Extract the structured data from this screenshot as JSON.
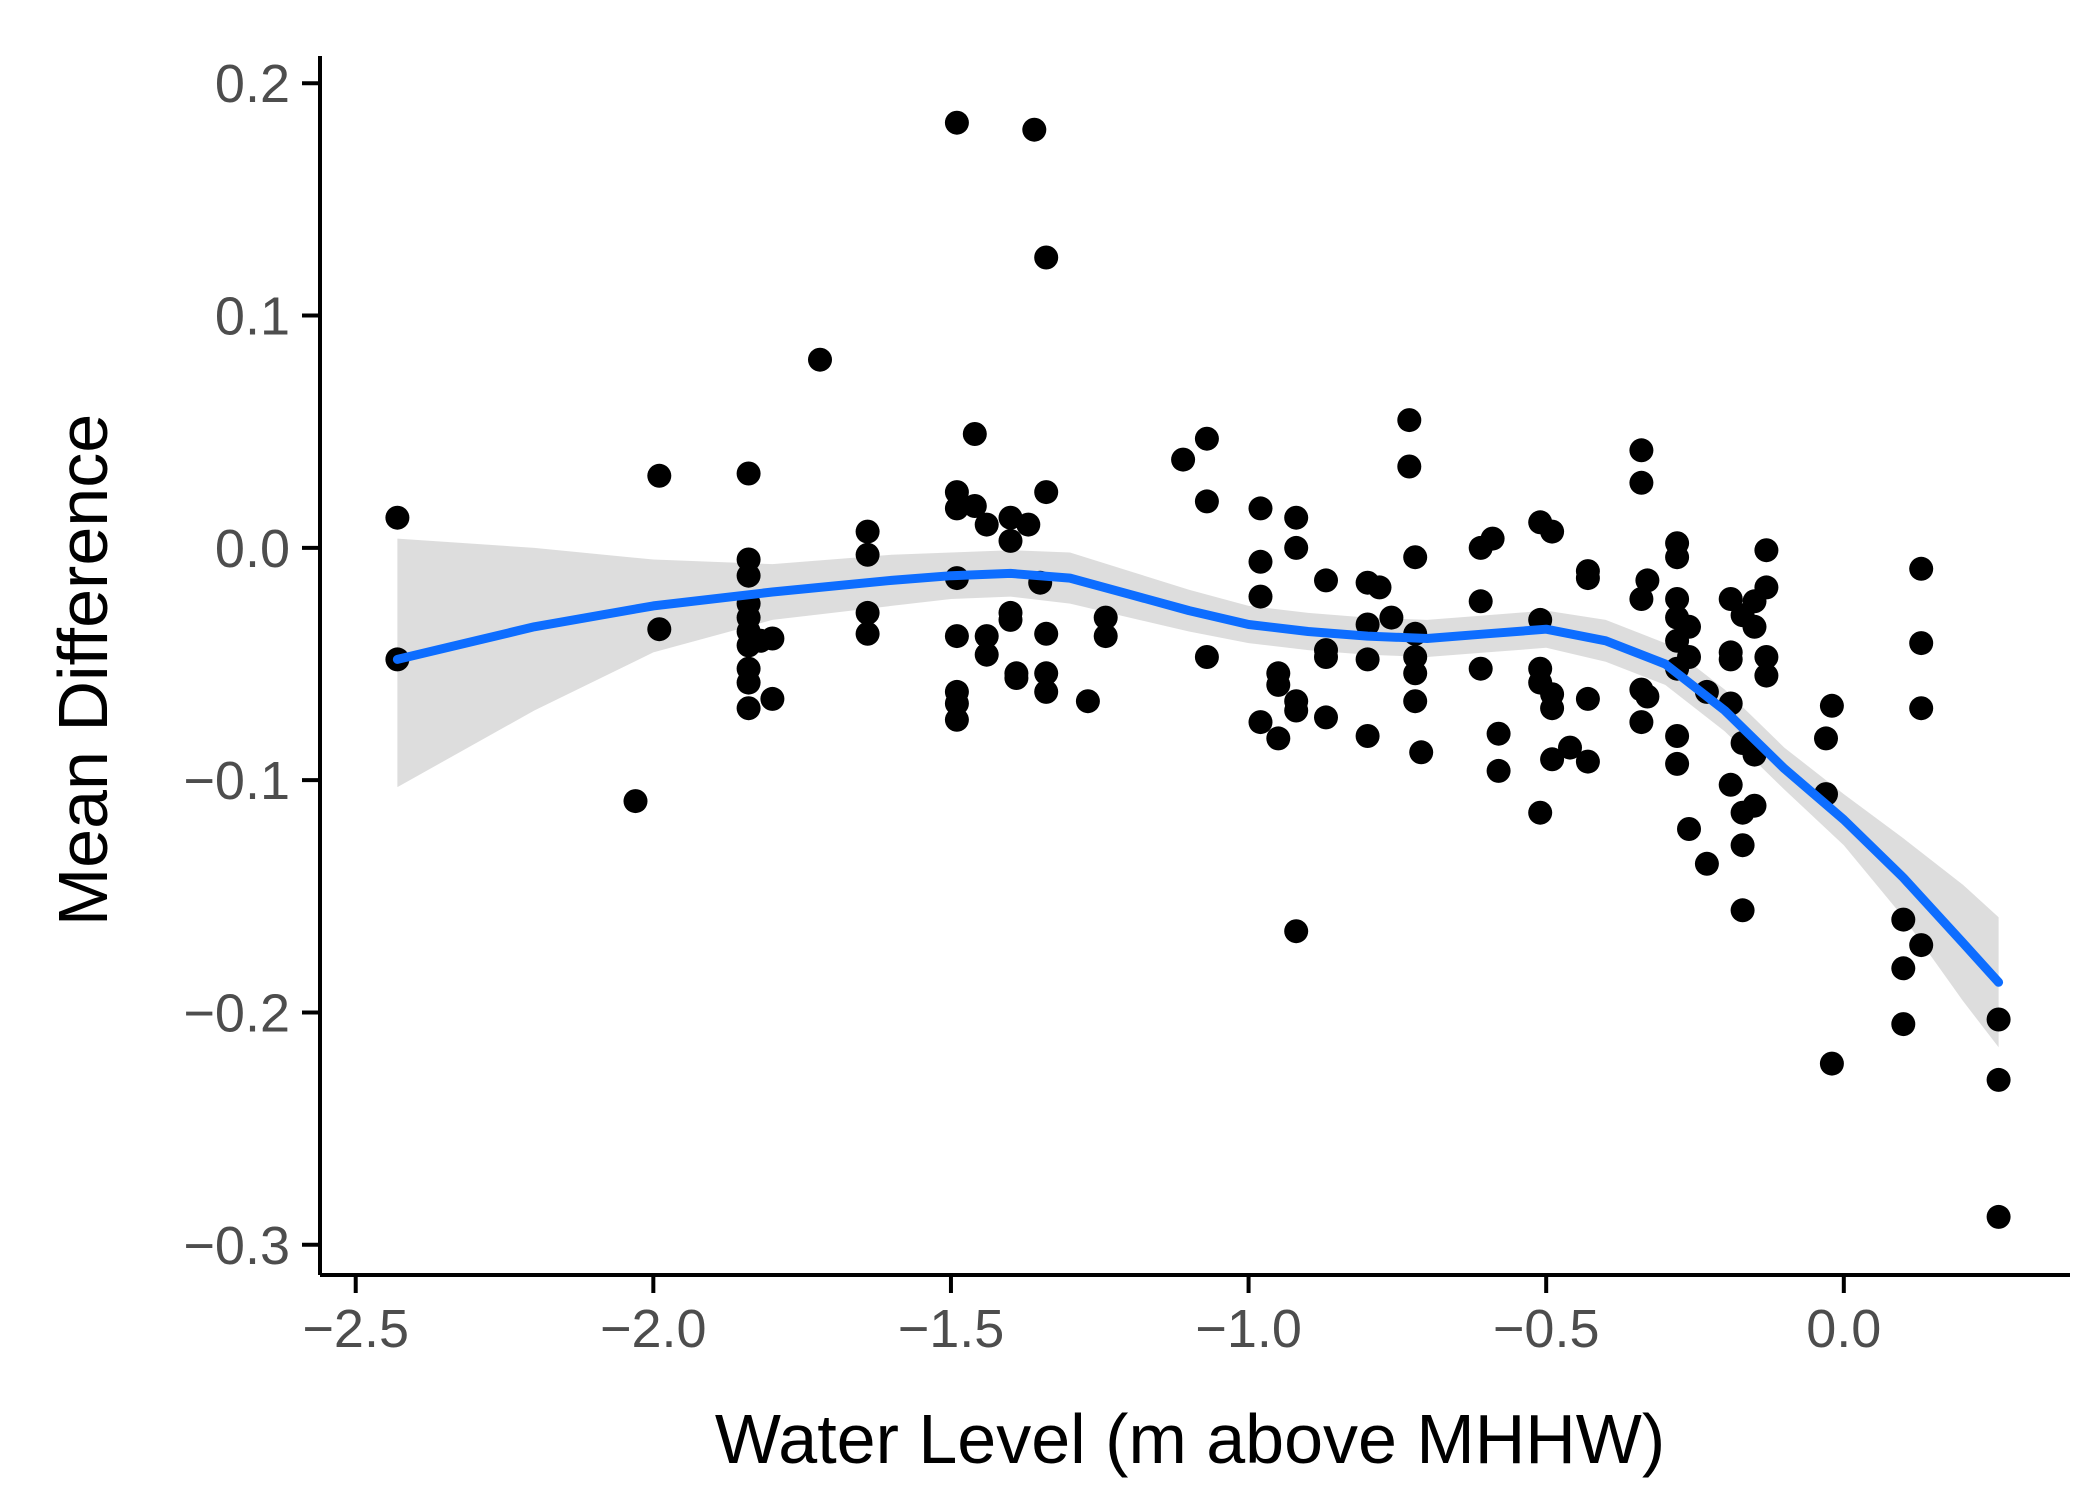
{
  "chart_data": {
    "type": "scatter",
    "title": "",
    "xlabel": "Water Level (m above MHHW)",
    "ylabel": "Mean Difference",
    "xlim": [
      -2.56,
      0.38
    ],
    "ylim": [
      -0.313,
      0.21
    ],
    "x_ticks": [
      -2.5,
      -2.0,
      -1.5,
      -1.0,
      -0.5,
      0.0
    ],
    "x_tick_labels": [
      "−2.5",
      "−2.0",
      "−1.5",
      "−1.0",
      "−0.5",
      "0.0"
    ],
    "y_ticks": [
      -0.3,
      -0.2,
      -0.1,
      0.0,
      0.1,
      0.2
    ],
    "y_tick_labels": [
      "−0.3",
      "−0.2",
      "−0.1",
      "0.0",
      "0.1",
      "0.2"
    ],
    "grid": false,
    "legend": "none",
    "colors": {
      "points": "#000000",
      "smooth_line": "#0d6dff",
      "confidence_band": "#d9d9d9",
      "axis": "#000000",
      "tick_label": "#4d4d4d"
    },
    "series": [
      {
        "name": "observations",
        "points": [
          [
            -2.43,
            0.013
          ],
          [
            -2.43,
            -0.048
          ],
          [
            -2.03,
            -0.109
          ],
          [
            -1.99,
            0.031
          ],
          [
            -1.99,
            -0.035
          ],
          [
            -1.84,
            0.032
          ],
          [
            -1.84,
            -0.005
          ],
          [
            -1.84,
            -0.012
          ],
          [
            -1.84,
            -0.024
          ],
          [
            -1.84,
            -0.03
          ],
          [
            -1.84,
            -0.036
          ],
          [
            -1.84,
            -0.042
          ],
          [
            -1.84,
            -0.052
          ],
          [
            -1.84,
            -0.058
          ],
          [
            -1.84,
            -0.069
          ],
          [
            -1.82,
            -0.04
          ],
          [
            -1.8,
            -0.039
          ],
          [
            -1.8,
            -0.065
          ],
          [
            -1.72,
            0.081
          ],
          [
            -1.64,
            0.007
          ],
          [
            -1.64,
            -0.003
          ],
          [
            -1.64,
            -0.028
          ],
          [
            -1.64,
            -0.037
          ],
          [
            -1.49,
            0.183
          ],
          [
            -1.49,
            0.024
          ],
          [
            -1.49,
            0.017
          ],
          [
            -1.49,
            -0.013
          ],
          [
            -1.49,
            -0.038
          ],
          [
            -1.49,
            -0.062
          ],
          [
            -1.49,
            -0.067
          ],
          [
            -1.49,
            -0.074
          ],
          [
            -1.46,
            0.049
          ],
          [
            -1.46,
            0.018
          ],
          [
            -1.44,
            0.01
          ],
          [
            -1.44,
            -0.038
          ],
          [
            -1.44,
            -0.046
          ],
          [
            -1.4,
            0.013
          ],
          [
            -1.4,
            0.003
          ],
          [
            -1.4,
            -0.028
          ],
          [
            -1.4,
            -0.031
          ],
          [
            -1.39,
            -0.054
          ],
          [
            -1.39,
            -0.056
          ],
          [
            -1.37,
            0.01
          ],
          [
            -1.36,
            0.18
          ],
          [
            -1.35,
            -0.015
          ],
          [
            -1.34,
            0.125
          ],
          [
            -1.34,
            0.024
          ],
          [
            -1.34,
            -0.037
          ],
          [
            -1.34,
            -0.054
          ],
          [
            -1.34,
            -0.062
          ],
          [
            -1.27,
            -0.066
          ],
          [
            -1.24,
            -0.03
          ],
          [
            -1.24,
            -0.038
          ],
          [
            -1.11,
            0.038
          ],
          [
            -1.07,
            0.047
          ],
          [
            -1.07,
            0.02
          ],
          [
            -1.07,
            -0.047
          ],
          [
            -0.98,
            0.017
          ],
          [
            -0.98,
            -0.006
          ],
          [
            -0.98,
            -0.021
          ],
          [
            -0.98,
            -0.075
          ],
          [
            -0.95,
            -0.054
          ],
          [
            -0.95,
            -0.059
          ],
          [
            -0.95,
            -0.082
          ],
          [
            -0.92,
            0.013
          ],
          [
            -0.92,
            0.0
          ],
          [
            -0.92,
            -0.066
          ],
          [
            -0.92,
            -0.07
          ],
          [
            -0.92,
            -0.165
          ],
          [
            -0.87,
            -0.014
          ],
          [
            -0.87,
            -0.044
          ],
          [
            -0.87,
            -0.047
          ],
          [
            -0.87,
            -0.073
          ],
          [
            -0.8,
            -0.015
          ],
          [
            -0.8,
            -0.033
          ],
          [
            -0.8,
            -0.048
          ],
          [
            -0.8,
            -0.081
          ],
          [
            -0.78,
            -0.017
          ],
          [
            -0.76,
            -0.03
          ],
          [
            -0.73,
            0.055
          ],
          [
            -0.73,
            0.035
          ],
          [
            -0.72,
            -0.004
          ],
          [
            -0.72,
            -0.037
          ],
          [
            -0.72,
            -0.047
          ],
          [
            -0.72,
            -0.054
          ],
          [
            -0.72,
            -0.066
          ],
          [
            -0.71,
            -0.088
          ],
          [
            -0.61,
            -0.0
          ],
          [
            -0.61,
            -0.023
          ],
          [
            -0.61,
            -0.052
          ],
          [
            -0.59,
            0.004
          ],
          [
            -0.58,
            -0.08
          ],
          [
            -0.58,
            -0.096
          ],
          [
            -0.51,
            0.011
          ],
          [
            -0.51,
            -0.031
          ],
          [
            -0.51,
            -0.052
          ],
          [
            -0.51,
            -0.058
          ],
          [
            -0.51,
            -0.114
          ],
          [
            -0.49,
            0.007
          ],
          [
            -0.49,
            -0.063
          ],
          [
            -0.49,
            -0.069
          ],
          [
            -0.49,
            -0.091
          ],
          [
            -0.46,
            -0.086
          ],
          [
            -0.43,
            -0.01
          ],
          [
            -0.43,
            -0.013
          ],
          [
            -0.43,
            -0.065
          ],
          [
            -0.43,
            -0.092
          ],
          [
            -0.34,
            0.042
          ],
          [
            -0.34,
            0.028
          ],
          [
            -0.34,
            -0.022
          ],
          [
            -0.34,
            -0.061
          ],
          [
            -0.34,
            -0.075
          ],
          [
            -0.33,
            -0.014
          ],
          [
            -0.33,
            -0.064
          ],
          [
            -0.28,
            0.002
          ],
          [
            -0.28,
            -0.004
          ],
          [
            -0.28,
            -0.022
          ],
          [
            -0.28,
            -0.03
          ],
          [
            -0.28,
            -0.04
          ],
          [
            -0.28,
            -0.052
          ],
          [
            -0.28,
            -0.081
          ],
          [
            -0.28,
            -0.093
          ],
          [
            -0.26,
            -0.034
          ],
          [
            -0.26,
            -0.047
          ],
          [
            -0.26,
            -0.121
          ],
          [
            -0.23,
            -0.062
          ],
          [
            -0.23,
            -0.136
          ],
          [
            -0.19,
            -0.022
          ],
          [
            -0.19,
            -0.045
          ],
          [
            -0.19,
            -0.048
          ],
          [
            -0.19,
            -0.067
          ],
          [
            -0.19,
            -0.102
          ],
          [
            -0.17,
            -0.029
          ],
          [
            -0.17,
            -0.084
          ],
          [
            -0.17,
            -0.114
          ],
          [
            -0.17,
            -0.128
          ],
          [
            -0.17,
            -0.156
          ],
          [
            -0.15,
            -0.023
          ],
          [
            -0.15,
            -0.034
          ],
          [
            -0.15,
            -0.089
          ],
          [
            -0.15,
            -0.111
          ],
          [
            -0.13,
            -0.001
          ],
          [
            -0.13,
            -0.017
          ],
          [
            -0.13,
            -0.047
          ],
          [
            -0.13,
            -0.055
          ],
          [
            -0.03,
            -0.082
          ],
          [
            -0.03,
            -0.106
          ],
          [
            -0.02,
            -0.068
          ],
          [
            -0.02,
            -0.222
          ],
          [
            0.1,
            -0.16
          ],
          [
            0.1,
            -0.181
          ],
          [
            0.1,
            -0.205
          ],
          [
            0.13,
            -0.009
          ],
          [
            0.13,
            -0.041
          ],
          [
            0.13,
            -0.069
          ],
          [
            0.13,
            -0.171
          ],
          [
            0.26,
            -0.203
          ],
          [
            0.26,
            -0.229
          ],
          [
            0.26,
            -0.288
          ]
        ]
      },
      {
        "name": "smooth",
        "x": [
          -2.43,
          -2.2,
          -2.0,
          -1.8,
          -1.6,
          -1.5,
          -1.4,
          -1.3,
          -1.2,
          -1.1,
          -1.0,
          -0.9,
          -0.8,
          -0.7,
          -0.6,
          -0.5,
          -0.4,
          -0.3,
          -0.2,
          -0.1,
          0.0,
          0.1,
          0.2,
          0.26
        ],
        "y": [
          -0.048,
          -0.034,
          -0.025,
          -0.019,
          -0.014,
          -0.012,
          -0.011,
          -0.013,
          -0.02,
          -0.027,
          -0.033,
          -0.036,
          -0.038,
          -0.039,
          -0.037,
          -0.035,
          -0.04,
          -0.05,
          -0.07,
          -0.095,
          -0.117,
          -0.142,
          -0.17,
          -0.187
        ],
        "ci_low": [
          -0.103,
          -0.07,
          -0.045,
          -0.031,
          -0.025,
          -0.022,
          -0.021,
          -0.024,
          -0.03,
          -0.036,
          -0.041,
          -0.044,
          -0.046,
          -0.047,
          -0.045,
          -0.043,
          -0.049,
          -0.059,
          -0.079,
          -0.104,
          -0.128,
          -0.159,
          -0.195,
          -0.215
        ],
        "ci_high": [
          0.004,
          0.0,
          -0.005,
          -0.007,
          -0.003,
          -0.002,
          -0.001,
          -0.002,
          -0.01,
          -0.018,
          -0.025,
          -0.028,
          -0.03,
          -0.031,
          -0.029,
          -0.027,
          -0.031,
          -0.041,
          -0.061,
          -0.086,
          -0.106,
          -0.125,
          -0.145,
          -0.159
        ]
      }
    ]
  }
}
